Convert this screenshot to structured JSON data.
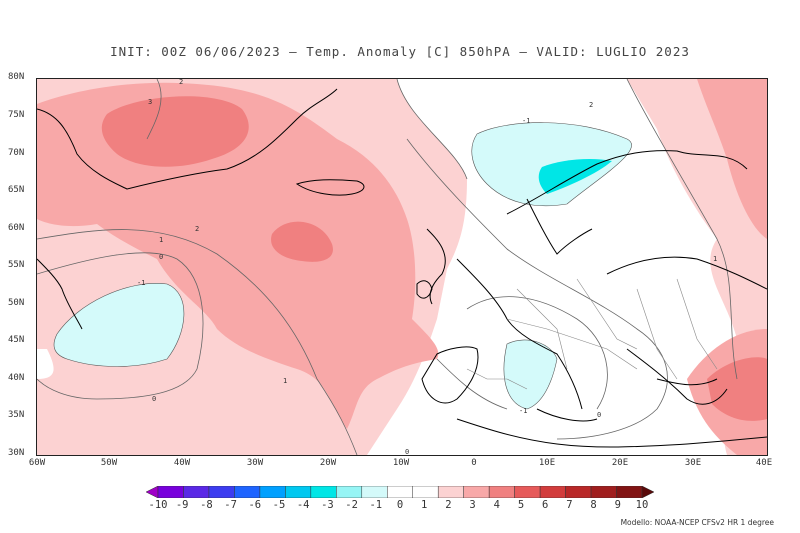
{
  "title": "INIT: 00Z 06/06/2023 – Temp. Anomaly [C] 850hPA – VALID: LUGLIO 2023",
  "lat_labels": [
    "80N",
    "75N",
    "70N",
    "65N",
    "60N",
    "55N",
    "50N",
    "45N",
    "40N",
    "35N",
    "30N"
  ],
  "lon_labels": [
    "60W",
    "50W",
    "40W",
    "30W",
    "20W",
    "10W",
    "0",
    "10E",
    "20E",
    "30E",
    "40E"
  ],
  "contour_labels": [
    "2",
    "3",
    "2",
    "1",
    "2",
    "0",
    "-1",
    "0",
    "1",
    "-1",
    "0",
    "-1",
    "0",
    "1"
  ],
  "legend": {
    "labels": [
      "-10",
      "-9",
      "-8",
      "-7",
      "-6",
      "-5",
      "-4",
      "-3",
      "-2",
      "-1",
      "0",
      "1",
      "2",
      "3",
      "4",
      "5",
      "6",
      "7",
      "8",
      "9",
      "10"
    ],
    "colors": [
      "#a000c8",
      "#7800dc",
      "#5a28e6",
      "#3c3cf0",
      "#1e64ff",
      "#00a0ff",
      "#00c8f0",
      "#00e6e6",
      "#96f5f5",
      "#d4fafa",
      "#ffffff",
      "#ffffff",
      "#fcd2d2",
      "#f8a8a8",
      "#f08080",
      "#e65a5a",
      "#d23c3c",
      "#b92828",
      "#a01e1e",
      "#821414",
      "#5a0a0a"
    ]
  },
  "credit": "Modello: NOAA-NCEP CFSv2 HR 1 degree"
}
